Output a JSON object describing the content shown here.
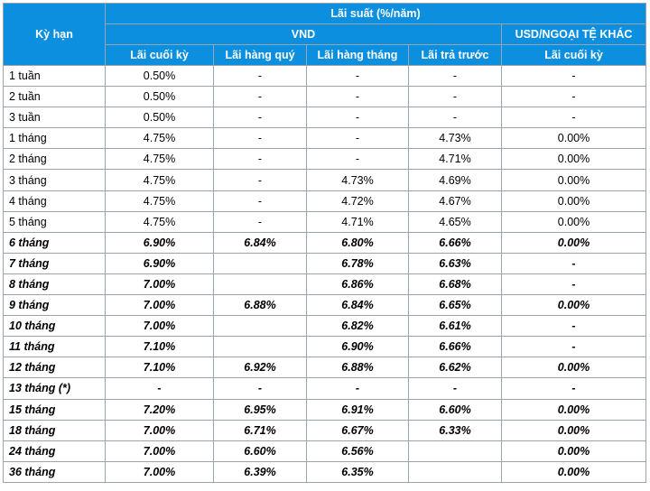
{
  "header": {
    "term_label": "Kỳ hạn",
    "rate_label": "Lãi suất (%/năm)",
    "vnd_label": "VND",
    "usd_label": "USD/NGOẠI TỆ KHÁC",
    "columns": [
      "Lãi cuối kỳ",
      "Lãi hàng quý",
      "Lãi hàng tháng",
      "Lãi trả trước",
      "Lãi cuối kỳ"
    ]
  },
  "rows": [
    {
      "term": "1 tuần",
      "bold": false,
      "cells": [
        "0.50%",
        "-",
        "-",
        "-",
        "-"
      ]
    },
    {
      "term": "2 tuần",
      "bold": false,
      "cells": [
        "0.50%",
        "-",
        "-",
        "-",
        "-"
      ]
    },
    {
      "term": "3 tuần",
      "bold": false,
      "cells": [
        "0.50%",
        "-",
        "-",
        "-",
        "-"
      ]
    },
    {
      "term": "1 tháng",
      "bold": false,
      "cells": [
        "4.75%",
        "-",
        "-",
        "4.73%",
        "0.00%"
      ]
    },
    {
      "term": "2 tháng",
      "bold": false,
      "cells": [
        "4.75%",
        "-",
        "-",
        "4.71%",
        "0.00%"
      ]
    },
    {
      "term": "3 tháng",
      "bold": false,
      "cells": [
        "4.75%",
        "-",
        "4.73%",
        "4.69%",
        "0.00%"
      ]
    },
    {
      "term": "4 tháng",
      "bold": false,
      "cells": [
        "4.75%",
        "-",
        "4.72%",
        "4.67%",
        "0.00%"
      ]
    },
    {
      "term": "5 tháng",
      "bold": false,
      "cells": [
        "4.75%",
        "-",
        "4.71%",
        "4.65%",
        "0.00%"
      ]
    },
    {
      "term": "6 tháng",
      "bold": true,
      "cells": [
        "6.90%",
        "6.84%",
        "6.80%",
        "6.66%",
        "0.00%"
      ]
    },
    {
      "term": "7 tháng",
      "bold": true,
      "cells": [
        "6.90%",
        "",
        "6.78%",
        "6.63%",
        "-"
      ]
    },
    {
      "term": "8 tháng",
      "bold": true,
      "cells": [
        "7.00%",
        "",
        "6.86%",
        "6.68%",
        "-"
      ]
    },
    {
      "term": "9 tháng",
      "bold": true,
      "cells": [
        "7.00%",
        "6.88%",
        "6.84%",
        "6.65%",
        "0.00%"
      ]
    },
    {
      "term": "10 tháng",
      "bold": true,
      "cells": [
        "7.00%",
        "",
        "6.82%",
        "6.61%",
        "-"
      ]
    },
    {
      "term": "11 tháng",
      "bold": true,
      "cells": [
        "7.10%",
        "",
        "6.90%",
        "6.66%",
        "-"
      ]
    },
    {
      "term": "12 tháng",
      "bold": true,
      "cells": [
        "7.10%",
        "6.92%",
        "6.88%",
        "6.62%",
        "0.00%"
      ]
    },
    {
      "term": "13 tháng (*)",
      "bold": true,
      "cells": [
        "-",
        "-",
        "-",
        "-",
        "-"
      ]
    },
    {
      "term": "15 tháng",
      "bold": true,
      "cells": [
        "7.20%",
        "6.95%",
        "6.91%",
        "6.60%",
        "0.00%"
      ]
    },
    {
      "term": "18 tháng",
      "bold": true,
      "cells": [
        "7.00%",
        "6.71%",
        "6.67%",
        "6.33%",
        "0.00%"
      ]
    },
    {
      "term": "24 tháng",
      "bold": true,
      "cells": [
        "7.00%",
        "6.60%",
        "6.56%",
        "",
        "0.00%"
      ]
    },
    {
      "term": "36 tháng",
      "bold": true,
      "cells": [
        "7.00%",
        "6.39%",
        "6.35%",
        "",
        "0.00%"
      ]
    }
  ]
}
